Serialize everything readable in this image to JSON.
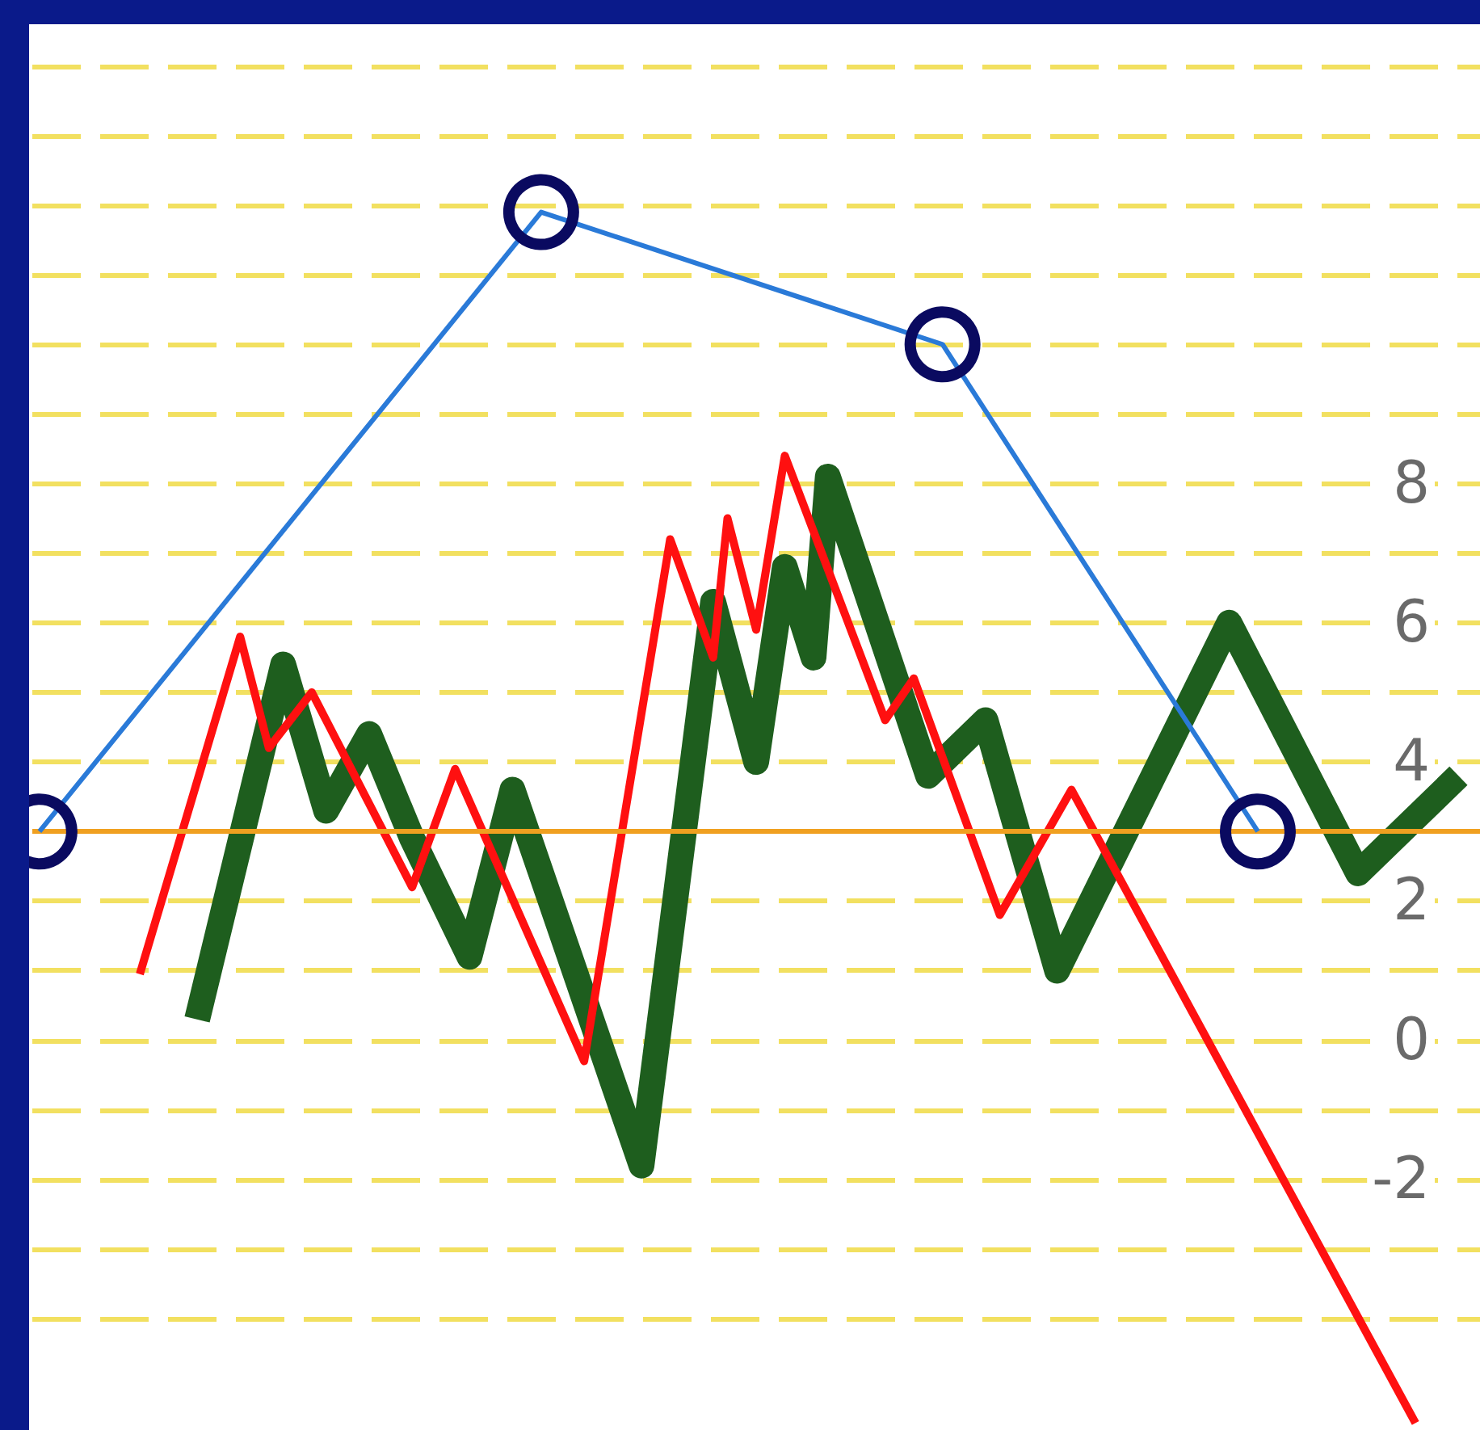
{
  "chart_data": {
    "type": "line",
    "ylim": [
      -5.6,
      14.6
    ],
    "categories": [
      null,
      null,
      null,
      null,
      null,
      null,
      null,
      null,
      null,
      null,
      null,
      null,
      null,
      null,
      null,
      null,
      null,
      null,
      null,
      null,
      null,
      null,
      null,
      null,
      null,
      null,
      null,
      null,
      null,
      null,
      null,
      null,
      null,
      null,
      null,
      null,
      null,
      null,
      null,
      null,
      null,
      null,
      null,
      null,
      null,
      null,
      null,
      null,
      null,
      null,
      null,
      null,
      null,
      null,
      null,
      null,
      null,
      null,
      null,
      null,
      null,
      null,
      null,
      null,
      null,
      null,
      null,
      null,
      null,
      null,
      null,
      null,
      null,
      null,
      null,
      null,
      null,
      null,
      null,
      null,
      null,
      null,
      null,
      null,
      null,
      null,
      null,
      null,
      null,
      null,
      null,
      null,
      null,
      null,
      null,
      null,
      null,
      null,
      null,
      null,
      null
    ],
    "yticks": [
      {
        "value": -4,
        "label": null
      },
      {
        "value": -3,
        "label": null
      },
      -2,
      {
        "value": -1,
        "label": null
      },
      0,
      {
        "value": 1,
        "label": null
      },
      2,
      {
        "value": 3,
        "label": null
      },
      4,
      {
        "value": 5,
        "label": null
      },
      6,
      {
        "value": 7,
        "label": null
      },
      8,
      {
        "value": 9,
        "label": null
      },
      {
        "value": 10,
        "label": null
      },
      {
        "value": 11,
        "label": null
      },
      {
        "value": 12,
        "label": null
      },
      {
        "value": 13,
        "label": null
      },
      {
        "value": 14,
        "label": null
      }
    ],
    "tick_labels": "y",
    "grid": "y",
    "ref_lines": [
      {
        "axis": "y",
        "value": 3,
        "color": "#f0a020"
      }
    ],
    "series": [
      {
        "color": "#1e5e1e",
        "marker": "none",
        "values": [
          null,
          null,
          null,
          null,
          null,
          null,
          null,
          null,
          null,
          null,
          null,
          0.3,
          null,
          null,
          null,
          null,
          null,
          5.4,
          null,
          null,
          3.3,
          null,
          null,
          4.4,
          null,
          null,
          2.9,
          null,
          null,
          null,
          1.2,
          null,
          null,
          3.6,
          null,
          null,
          null,
          null,
          null,
          null,
          null,
          null,
          -1.8,
          null,
          null,
          null,
          null,
          6.3,
          null,
          null,
          4.0,
          null,
          6.8,
          null,
          5.5,
          8.1,
          null,
          null,
          null,
          null,
          null,
          null,
          3.8,
          null,
          null,
          null,
          4.6,
          null,
          null,
          null,
          null,
          1.0,
          null,
          null,
          null,
          null,
          null,
          null,
          null,
          null,
          null,
          null,
          null,
          6.0,
          null,
          null,
          null,
          null,
          null,
          null,
          null,
          null,
          2.4,
          null,
          null,
          null,
          null,
          null,
          null,
          3.8,
          null
        ]
      },
      {
        "color": "#ff1010",
        "marker": "none",
        "values": [
          null,
          null,
          null,
          null,
          null,
          null,
          null,
          0.95,
          null,
          null,
          null,
          null,
          null,
          null,
          5.8,
          null,
          4.2,
          null,
          null,
          5.0,
          null,
          null,
          null,
          null,
          null,
          null,
          2.2,
          null,
          null,
          3.9,
          null,
          null,
          null,
          null,
          null,
          null,
          null,
          null,
          -0.3,
          null,
          null,
          null,
          null,
          null,
          7.2,
          null,
          null,
          5.5,
          7.5,
          null,
          5.9,
          null,
          8.4,
          null,
          null,
          null,
          null,
          null,
          null,
          4.6,
          null,
          5.2,
          null,
          null,
          null,
          null,
          null,
          1.8,
          null,
          null,
          null,
          null,
          3.6,
          null,
          null,
          null,
          null,
          null,
          null,
          null,
          null,
          null,
          null,
          null,
          null,
          null,
          null,
          null,
          null,
          null,
          null,
          null,
          null,
          null,
          null,
          null,
          -5.5,
          null,
          null,
          null,
          null
        ]
      },
      {
        "color": "#2a7ad8",
        "marker": "circle",
        "values": [
          3.0,
          null,
          null,
          null,
          null,
          null,
          null,
          null,
          null,
          null,
          null,
          null,
          null,
          null,
          null,
          null,
          null,
          null,
          null,
          null,
          null,
          null,
          null,
          null,
          null,
          null,
          null,
          null,
          null,
          null,
          null,
          null,
          null,
          null,
          null,
          11.9,
          null,
          null,
          null,
          null,
          null,
          null,
          null,
          null,
          null,
          null,
          null,
          null,
          null,
          null,
          null,
          null,
          null,
          null,
          null,
          null,
          null,
          null,
          null,
          null,
          null,
          null,
          null,
          10.0,
          null,
          null,
          null,
          null,
          null,
          null,
          null,
          null,
          null,
          null,
          null,
          null,
          null,
          null,
          null,
          null,
          null,
          null,
          null,
          null,
          null,
          3.0,
          null,
          null,
          null,
          null,
          null,
          null,
          null,
          null,
          null,
          null,
          null,
          null,
          null,
          null,
          null
        ]
      }
    ]
  }
}
